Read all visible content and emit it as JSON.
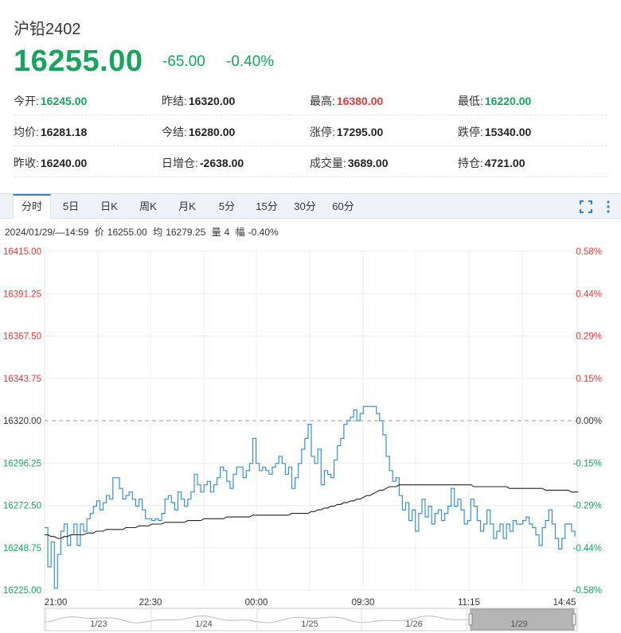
{
  "header": {
    "title": "沪铅2402",
    "price": "16255.00",
    "change": "-65.00",
    "change_pct": "-0.40%"
  },
  "stats": [
    [
      {
        "k": "今开:",
        "v": "16245.00",
        "c": "green"
      },
      {
        "k": "昨结:",
        "v": "16320.00",
        "c": ""
      },
      {
        "k": "最高:",
        "v": "16380.00",
        "c": "red"
      },
      {
        "k": "最低:",
        "v": "16220.00",
        "c": "green"
      }
    ],
    [
      {
        "k": "均价:",
        "v": "16281.18",
        "c": ""
      },
      {
        "k": "今结:",
        "v": "16280.00",
        "c": ""
      },
      {
        "k": "涨停:",
        "v": "17295.00",
        "c": ""
      },
      {
        "k": "跌停:",
        "v": "15340.00",
        "c": ""
      }
    ],
    [
      {
        "k": "昨收:",
        "v": "16240.00",
        "c": ""
      },
      {
        "k": "日增仓:",
        "v": "-2638.00",
        "c": ""
      },
      {
        "k": "成交量:",
        "v": "3689.00",
        "c": ""
      },
      {
        "k": "持仓:",
        "v": "4721.00",
        "c": ""
      }
    ]
  ],
  "tabs": [
    "分时",
    "5日",
    "日K",
    "周K",
    "月K",
    "5分",
    "15分",
    "30分",
    "60分"
  ],
  "active_tab": "分时",
  "tools": {
    "fullscreen_icon": "fullscreen-icon",
    "more_icon": "more-vertical-icon"
  },
  "info": {
    "time": "2024/01/29/—14:59",
    "price_label": "价",
    "price": "16255.00",
    "avg_label": "均",
    "avg": "16279.25",
    "vol_label": "量",
    "vol": "4",
    "amp_label": "幅",
    "amp": "-0.40%"
  },
  "colors": {
    "up": "#e03a3a",
    "down": "#1aa35f",
    "price_line": "#3a8fd0",
    "avg_line": "#222222",
    "flat": "#333333"
  },
  "chart_data": {
    "type": "line",
    "ylim": [
      16225.0,
      16415.0
    ],
    "pre_settle": 16320.0,
    "y_ticks_left": [
      "16415.00",
      "16391.25",
      "16367.50",
      "16343.75",
      "16320.00",
      "16296.25",
      "16272.50",
      "16248.75",
      "16225.00"
    ],
    "y_ticks_right": [
      "0.58%",
      "0.44%",
      "0.29%",
      "0.15%",
      "0.00%",
      "-0.15%",
      "-0.29%",
      "-0.44%",
      "-0.58%"
    ],
    "x_ticks": [
      "21:00",
      "22:30",
      "00:00",
      "09:30",
      "11:15",
      "14:45"
    ],
    "navigator_labels": [
      "1/23",
      "1/24",
      "1/25",
      "1/26",
      "1/29"
    ],
    "series": [
      {
        "name": "价",
        "values": [
          16260,
          16238,
          16252,
          16226,
          16245,
          16258,
          16262,
          16250,
          16256,
          16262,
          16250,
          16262,
          16258,
          16265,
          16268,
          16272,
          16275,
          16270,
          16274,
          16278,
          16276,
          16288,
          16288,
          16282,
          16276,
          16278,
          16280,
          16276,
          16272,
          16276,
          16270,
          16265,
          16265,
          16264,
          16265,
          16264,
          16268,
          16276,
          16278,
          16274,
          16270,
          16280,
          16276,
          16272,
          16276,
          16280,
          16290,
          16284,
          16280,
          16284,
          16286,
          16280,
          16284,
          16288,
          16294,
          16292,
          16286,
          16282,
          16290,
          16294,
          16294,
          16288,
          16292,
          16296,
          16310,
          16296,
          16292,
          16294,
          16292,
          16290,
          16294,
          16296,
          16300,
          16296,
          16290,
          16294,
          16282,
          16288,
          16296,
          16304,
          16310,
          16318,
          16300,
          16296,
          16304,
          16284,
          16292,
          16290,
          16288,
          16298,
          16306,
          16310,
          16318,
          16320,
          16322,
          16326,
          16320,
          16324,
          16328,
          16328,
          16328,
          16328,
          16324,
          16320,
          16312,
          16300,
          16292,
          16286,
          16288,
          16278,
          16270,
          16274,
          16264,
          16270,
          16258,
          16268,
          16276,
          16266,
          16272,
          16262,
          16268,
          16270,
          16264,
          16268,
          16272,
          16282,
          16272,
          16276,
          16270,
          16262,
          16264,
          16276,
          16272,
          16264,
          16258,
          16262,
          16270,
          16262,
          16254,
          16258,
          16262,
          16254,
          16262,
          16258,
          16264,
          16262,
          16262,
          16264,
          16266,
          16262,
          16260,
          16256,
          16250,
          16260,
          16264,
          16270,
          16262,
          16254,
          16248,
          16254,
          16262,
          16262,
          16258,
          16255
        ]
      },
      {
        "name": "均",
        "values": [
          16256,
          16256,
          16255,
          16255,
          16254,
          16254,
          16255,
          16255,
          16256,
          16256,
          16256,
          16256,
          16256,
          16257,
          16257,
          16257,
          16258,
          16258,
          16258,
          16259,
          16259,
          16259,
          16259,
          16259,
          16259,
          16260,
          16260,
          16260,
          16260,
          16261,
          16261,
          16261,
          16261,
          16262,
          16262,
          16262,
          16262,
          16263,
          16263,
          16263,
          16263,
          16263,
          16263,
          16263,
          16264,
          16264,
          16264,
          16264,
          16264,
          16265,
          16265,
          16265,
          16265,
          16265,
          16265,
          16265,
          16266,
          16266,
          16266,
          16266,
          16266,
          16266,
          16266,
          16266,
          16267,
          16267,
          16267,
          16267,
          16267,
          16267,
          16267,
          16267,
          16267,
          16267,
          16267,
          16267,
          16268,
          16268,
          16268,
          16268,
          16268,
          16268,
          16269,
          16269,
          16270,
          16270,
          16271,
          16271,
          16272,
          16272,
          16273,
          16273,
          16274,
          16274,
          16275,
          16275,
          16276,
          16276,
          16277,
          16278,
          16278,
          16279,
          16280,
          16281,
          16281,
          16282,
          16283,
          16283,
          16283,
          16284,
          16284,
          16284,
          16284,
          16284,
          16284,
          16284,
          16284,
          16284,
          16284,
          16284,
          16284,
          16284,
          16284,
          16284,
          16284,
          16284,
          16284,
          16284,
          16284,
          16284,
          16284,
          16284,
          16283,
          16283,
          16283,
          16283,
          16283,
          16283,
          16283,
          16283,
          16283,
          16283,
          16283,
          16282,
          16282,
          16282,
          16282,
          16282,
          16282,
          16282,
          16282,
          16282,
          16282,
          16282,
          16281,
          16281,
          16281,
          16281,
          16281,
          16281,
          16281,
          16281,
          16280,
          16280,
          16280
        ]
      }
    ]
  }
}
